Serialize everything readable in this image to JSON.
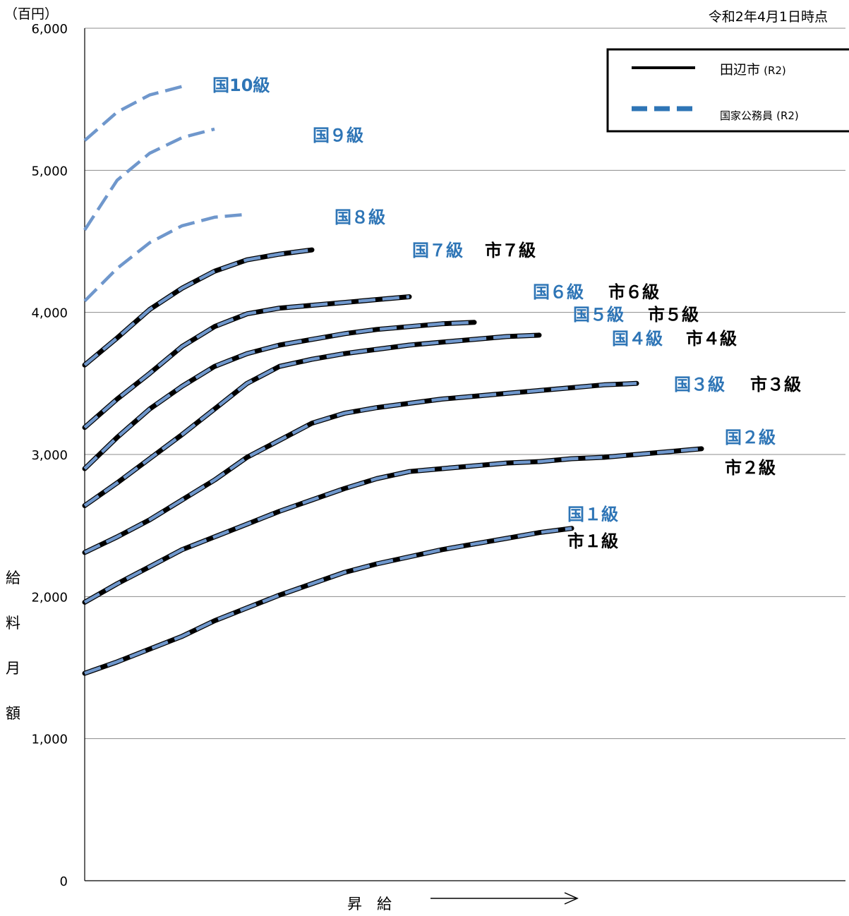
{
  "chart_data": {
    "type": "line",
    "unit_label": "（百円）",
    "as_of": "令和2年4月1日時点",
    "ylabel": "給料月額",
    "xlabel": "昇　給",
    "ylim": [
      0,
      6000
    ],
    "yticks": [
      "0",
      "1,000",
      "2,000",
      "3,000",
      "4,000",
      "5,000",
      "6,000"
    ],
    "grid": true,
    "legend": {
      "placement": "top-right",
      "items": [
        {
          "label": "田辺市",
          "suffix": "(R2)",
          "style": "solid",
          "color": "#000000"
        },
        {
          "label": "国家公務員",
          "suffix": "(R2)",
          "style": "dashed",
          "color": "#2e75b6"
        }
      ]
    },
    "colors": {
      "national": "#2e75b6",
      "national_line": "#6f97cc",
      "city": "#000000"
    },
    "series": [
      {
        "national_label": "国１級",
        "city_label": "市１級",
        "has_city": true,
        "values": [
          1460,
          1540,
          1630,
          1720,
          1830,
          1920,
          2010,
          2090,
          2170,
          2230,
          2280,
          2330,
          2370,
          2410,
          2450,
          2480
        ]
      },
      {
        "national_label": "国２級",
        "city_label": "市２級",
        "has_city": true,
        "values": [
          1960,
          2090,
          2210,
          2330,
          2420,
          2510,
          2600,
          2680,
          2760,
          2830,
          2880,
          2900,
          2920,
          2940,
          2950,
          2970,
          2980,
          3000,
          3020,
          3040
        ]
      },
      {
        "national_label": "国３級",
        "city_label": "市３級",
        "has_city": true,
        "values": [
          2310,
          2420,
          2540,
          2680,
          2820,
          2980,
          3100,
          3220,
          3290,
          3330,
          3360,
          3390,
          3410,
          3430,
          3450,
          3470,
          3490,
          3500
        ]
      },
      {
        "national_label": "国４級",
        "city_label": "市４級",
        "has_city": true,
        "values": [
          2640,
          2800,
          2970,
          3140,
          3320,
          3500,
          3620,
          3670,
          3710,
          3740,
          3770,
          3790,
          3810,
          3830,
          3840
        ]
      },
      {
        "national_label": "国５級",
        "city_label": "市５級",
        "has_city": true,
        "values": [
          2900,
          3120,
          3320,
          3480,
          3620,
          3710,
          3770,
          3810,
          3850,
          3880,
          3900,
          3920,
          3930
        ]
      },
      {
        "national_label": "国６級",
        "city_label": "市６級",
        "has_city": true,
        "values": [
          3190,
          3390,
          3570,
          3760,
          3900,
          3990,
          4030,
          4050,
          4070,
          4090,
          4110
        ]
      },
      {
        "national_label": "国７級",
        "city_label": "市７級",
        "has_city": true,
        "values": [
          3630,
          3820,
          4020,
          4170,
          4290,
          4370,
          4410,
          4440
        ]
      },
      {
        "national_label": "国８級",
        "city_label": "",
        "has_city": false,
        "values": [
          4080,
          4310,
          4490,
          4610,
          4670,
          4690
        ]
      },
      {
        "national_label": "国９級",
        "city_label": "",
        "has_city": false,
        "values": [
          4580,
          4930,
          5120,
          5230,
          5290
        ]
      },
      {
        "national_label": "国10級",
        "city_label": "",
        "has_city": false,
        "values": [
          5210,
          5410,
          5530,
          5590
        ]
      }
    ]
  }
}
